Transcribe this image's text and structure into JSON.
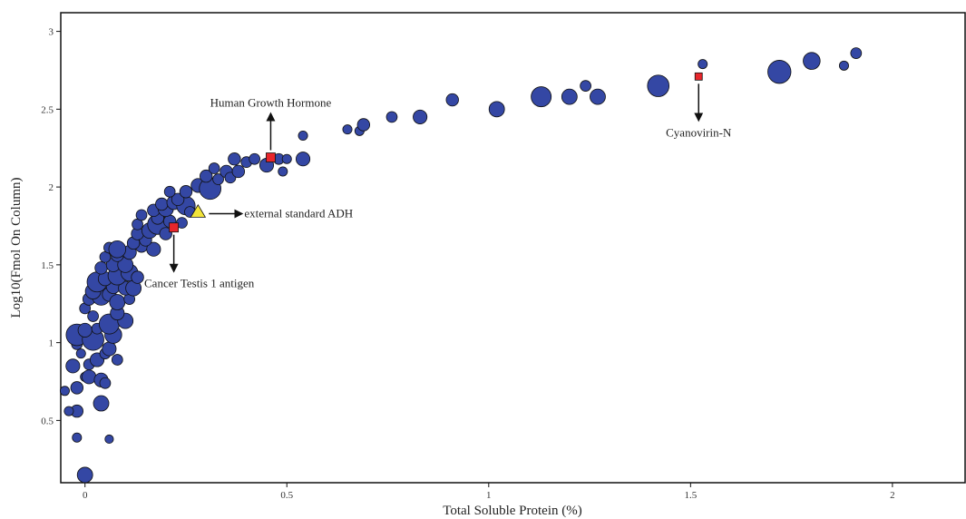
{
  "chart_data": {
    "type": "scatter",
    "title": "",
    "xlabel": "Total Soluble Protein (%)",
    "ylabel": "Log10(Fmol On Column)",
    "xlim": [
      -0.06,
      2.18
    ],
    "ylim": [
      0.1,
      3.12
    ],
    "xticks": [
      0,
      0.5,
      1,
      1.5,
      2
    ],
    "yticks": [
      0.5,
      1,
      1.5,
      2,
      2.5,
      3
    ],
    "xtick_labels": [
      "0",
      "0.5",
      "1",
      "1.5",
      "2"
    ],
    "ytick_labels": [
      "0.5",
      "1",
      "1.5",
      "2",
      "2.5",
      "3"
    ],
    "grid": false,
    "legend": "none",
    "colors": {
      "points": "#3447a4",
      "point_edge": "#111111",
      "marker_square": "#e8262b",
      "marker_triangle": "#f2e43a"
    },
    "series": [
      {
        "marker": "circle",
        "points": [
          [
            0.0,
            0.15,
            1
          ],
          [
            -0.02,
            0.39,
            0.6
          ],
          [
            0.06,
            0.38,
            0.55
          ],
          [
            -0.02,
            0.56,
            0.8
          ],
          [
            0.04,
            0.61,
            1.0
          ],
          [
            -0.04,
            0.56,
            0.6
          ],
          [
            -0.05,
            0.69,
            0.6
          ],
          [
            -0.02,
            0.71,
            0.8
          ],
          [
            0.0,
            0.78,
            0.6
          ],
          [
            0.01,
            0.78,
            0.9
          ],
          [
            0.04,
            0.76,
            0.9
          ],
          [
            0.05,
            0.74,
            0.7
          ],
          [
            -0.03,
            0.85,
            0.9
          ],
          [
            0.01,
            0.86,
            0.7
          ],
          [
            0.03,
            0.89,
            0.9
          ],
          [
            0.05,
            0.93,
            0.7
          ],
          [
            0.08,
            0.89,
            0.7
          ],
          [
            -0.01,
            0.93,
            0.6
          ],
          [
            -0.02,
            0.99,
            0.7
          ],
          [
            0.06,
            0.96,
            0.9
          ],
          [
            -0.02,
            1.05,
            1.4
          ],
          [
            0.02,
            1.02,
            1.4
          ],
          [
            0.0,
            1.08,
            0.9
          ],
          [
            0.03,
            1.09,
            0.7
          ],
          [
            0.07,
            1.05,
            1.1
          ],
          [
            0.06,
            1.12,
            1.3
          ],
          [
            0.1,
            1.14,
            1.0
          ],
          [
            0.08,
            1.19,
            0.9
          ],
          [
            0.02,
            1.17,
            0.7
          ],
          [
            0.0,
            1.22,
            0.7
          ],
          [
            0.01,
            1.28,
            0.8
          ],
          [
            0.04,
            1.3,
            1.2
          ],
          [
            0.06,
            1.31,
            0.9
          ],
          [
            0.08,
            1.26,
            1.0
          ],
          [
            0.11,
            1.28,
            0.7
          ],
          [
            0.02,
            1.33,
            1.0
          ],
          [
            0.03,
            1.39,
            1.3
          ],
          [
            0.07,
            1.36,
            0.9
          ],
          [
            0.1,
            1.35,
            0.9
          ],
          [
            0.12,
            1.35,
            1.0
          ],
          [
            0.05,
            1.41,
            0.9
          ],
          [
            0.08,
            1.43,
            1.2
          ],
          [
            0.11,
            1.45,
            1.1
          ],
          [
            0.13,
            1.42,
            0.8
          ],
          [
            0.04,
            1.48,
            0.8
          ],
          [
            0.07,
            1.5,
            0.9
          ],
          [
            0.1,
            1.5,
            1.0
          ],
          [
            0.05,
            1.55,
            0.7
          ],
          [
            0.08,
            1.56,
            0.8
          ],
          [
            0.11,
            1.58,
            0.9
          ],
          [
            0.06,
            1.61,
            0.7
          ],
          [
            0.08,
            1.6,
            1.1
          ],
          [
            0.14,
            1.62,
            0.8
          ],
          [
            0.17,
            1.6,
            0.9
          ],
          [
            0.12,
            1.64,
            0.8
          ],
          [
            0.15,
            1.66,
            0.8
          ],
          [
            0.13,
            1.7,
            0.8
          ],
          [
            0.16,
            1.72,
            1.0
          ],
          [
            0.18,
            1.76,
            1.3
          ],
          [
            0.2,
            1.7,
            0.8
          ],
          [
            0.13,
            1.76,
            0.7
          ],
          [
            0.18,
            1.8,
            0.8
          ],
          [
            0.21,
            1.78,
            0.8
          ],
          [
            0.14,
            1.82,
            0.7
          ],
          [
            0.17,
            1.85,
            0.8
          ],
          [
            0.2,
            1.86,
            1.0
          ],
          [
            0.19,
            1.89,
            0.8
          ],
          [
            0.22,
            1.9,
            0.9
          ],
          [
            0.25,
            1.88,
            1.2
          ],
          [
            0.23,
            1.92,
            0.8
          ],
          [
            0.21,
            1.97,
            0.7
          ],
          [
            0.25,
            1.97,
            0.8
          ],
          [
            0.24,
            1.77,
            0.7
          ],
          [
            0.26,
            1.84,
            0.7
          ],
          [
            0.28,
            2.01,
            0.9
          ],
          [
            0.31,
            1.99,
            1.4
          ],
          [
            0.3,
            2.07,
            0.8
          ],
          [
            0.33,
            2.05,
            0.7
          ],
          [
            0.35,
            2.1,
            0.8
          ],
          [
            0.36,
            2.06,
            0.7
          ],
          [
            0.38,
            2.1,
            0.8
          ],
          [
            0.32,
            2.12,
            0.7
          ],
          [
            0.37,
            2.18,
            0.8
          ],
          [
            0.4,
            2.16,
            0.7
          ],
          [
            0.42,
            2.18,
            0.7
          ],
          [
            0.45,
            2.14,
            0.9
          ],
          [
            0.48,
            2.18,
            0.7
          ],
          [
            0.49,
            2.1,
            0.6
          ],
          [
            0.5,
            2.18,
            0.6
          ],
          [
            0.54,
            2.18,
            0.9
          ],
          [
            0.54,
            2.33,
            0.6
          ],
          [
            0.65,
            2.37,
            0.6
          ],
          [
            0.68,
            2.36,
            0.6
          ],
          [
            0.69,
            2.4,
            0.8
          ],
          [
            0.76,
            2.45,
            0.7
          ],
          [
            0.83,
            2.45,
            0.9
          ],
          [
            0.91,
            2.56,
            0.8
          ],
          [
            1.02,
            2.5,
            1.0
          ],
          [
            1.13,
            2.58,
            1.3
          ],
          [
            1.2,
            2.58,
            1.0
          ],
          [
            1.24,
            2.65,
            0.7
          ],
          [
            1.27,
            2.58,
            1.0
          ],
          [
            1.42,
            2.65,
            1.4
          ],
          [
            1.53,
            2.79,
            0.6
          ],
          [
            1.72,
            2.74,
            1.5
          ],
          [
            1.8,
            2.81,
            1.1
          ],
          [
            1.88,
            2.78,
            0.6
          ],
          [
            1.91,
            2.86,
            0.7
          ]
        ]
      }
    ],
    "special_markers": [
      {
        "shape": "square",
        "x": 0.46,
        "y": 2.19
      },
      {
        "shape": "square",
        "x": 0.22,
        "y": 1.74
      },
      {
        "shape": "square",
        "x": 1.52,
        "y": 2.71
      },
      {
        "shape": "triangle",
        "x": 0.28,
        "y": 1.84
      }
    ],
    "annotations": [
      {
        "text": "Human Growth Hormone",
        "x": 0.46,
        "y": 2.19,
        "direction": "up"
      },
      {
        "text": "Cancer Testis 1 antigen",
        "x": 0.22,
        "y": 1.74,
        "direction": "down"
      },
      {
        "text": "Cyanovirin-N",
        "x": 1.52,
        "y": 2.71,
        "direction": "down"
      },
      {
        "text": "external standard ADH",
        "x": 0.28,
        "y": 1.84,
        "direction": "right"
      }
    ]
  }
}
